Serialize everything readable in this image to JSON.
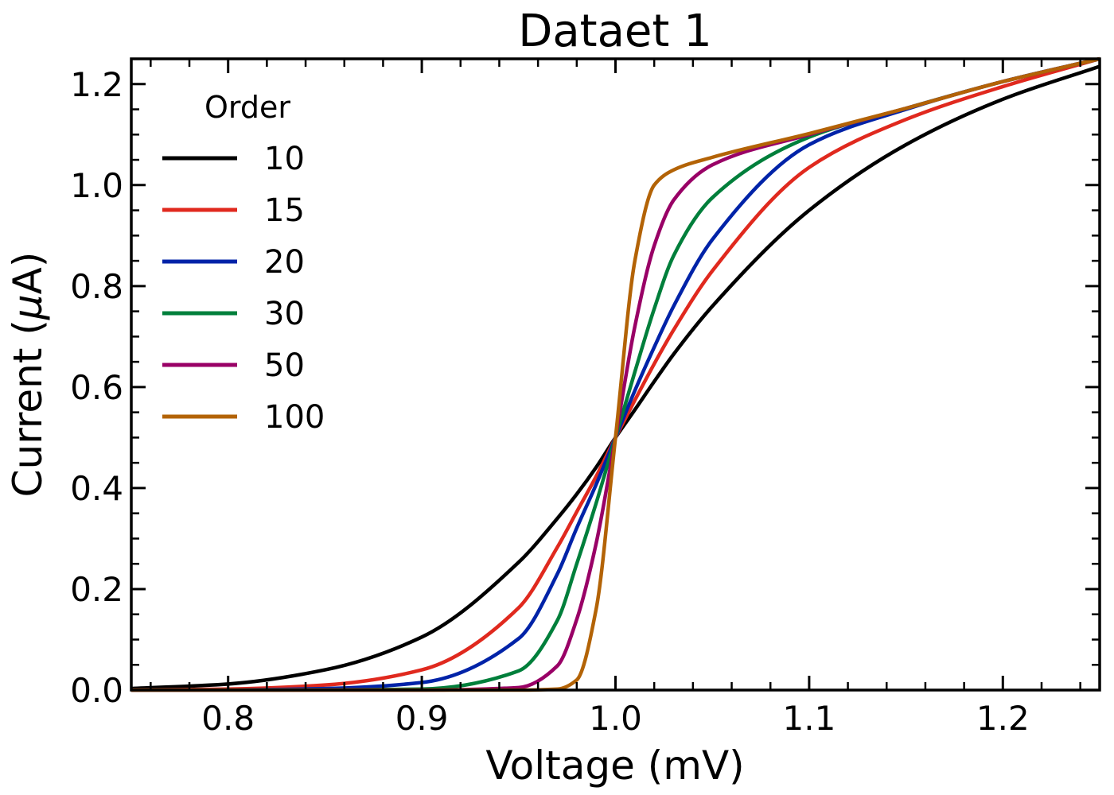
{
  "chart_data": {
    "type": "line",
    "title": "Dataet 1",
    "xlabel": "Voltage (mV)",
    "ylabel_prefix": "Current (",
    "ylabel_symbol": "μ",
    "ylabel_suffix": "A)",
    "xlim": [
      0.75,
      1.25
    ],
    "ylim": [
      0.0,
      1.25
    ],
    "x_ticks": [
      0.8,
      0.9,
      1.0,
      1.1,
      1.2
    ],
    "x_tick_labels": [
      "0.8",
      "0.9",
      "1.0",
      "1.1",
      "1.2"
    ],
    "y_ticks": [
      0.0,
      0.2,
      0.4,
      0.6,
      0.8,
      1.0,
      1.2
    ],
    "y_tick_labels": [
      "0.0",
      "0.2",
      "0.4",
      "0.6",
      "0.8",
      "1.0",
      "1.2"
    ],
    "grid": false,
    "legend": {
      "title": "Order",
      "placement": "upper-left"
    },
    "x": [
      0.75,
      0.8,
      0.85,
      0.9,
      0.95,
      0.97,
      0.98,
      0.99,
      1.0,
      1.01,
      1.02,
      1.03,
      1.05,
      1.1,
      1.15,
      1.2,
      1.25
    ],
    "series": [
      {
        "name": "10",
        "color": "#000000",
        "values": [
          0.003,
          0.012,
          0.04,
          0.105,
          0.253,
          0.34,
          0.388,
          0.441,
          0.5,
          0.555,
          0.611,
          0.665,
          0.76,
          0.95,
          1.08,
          1.17,
          1.235
        ]
      },
      {
        "name": "15",
        "color": "#e0291e",
        "values": [
          0.0001,
          0.002,
          0.01,
          0.04,
          0.163,
          0.283,
          0.353,
          0.423,
          0.5,
          0.574,
          0.646,
          0.713,
          0.83,
          1.035,
          1.13,
          1.195,
          1.25
        ]
      },
      {
        "name": "20",
        "color": "#0023a8",
        "values": [
          0.0,
          0.0003,
          0.003,
          0.015,
          0.102,
          0.23,
          0.321,
          0.407,
          0.5,
          0.593,
          0.679,
          0.76,
          0.892,
          1.08,
          1.15,
          1.205,
          1.25
        ]
      },
      {
        "name": "30",
        "color": "#007f3b",
        "values": [
          0.0,
          0.0,
          0.0003,
          0.002,
          0.038,
          0.138,
          0.25,
          0.37,
          0.5,
          0.63,
          0.755,
          0.86,
          0.975,
          1.095,
          1.152,
          1.205,
          1.25
        ]
      },
      {
        "name": "50",
        "color": "#990066",
        "values": [
          0.0,
          0.0,
          0.0,
          0.0,
          0.005,
          0.048,
          0.14,
          0.29,
          0.5,
          0.72,
          0.88,
          0.97,
          1.04,
          1.1,
          1.152,
          1.205,
          1.25
        ]
      },
      {
        "name": "100",
        "color": "#b36306",
        "values": [
          0.0,
          0.0,
          0.0,
          0.0,
          0.0,
          0.002,
          0.02,
          0.16,
          0.5,
          0.85,
          1.0,
          1.03,
          1.055,
          1.102,
          1.152,
          1.205,
          1.25
        ]
      }
    ]
  }
}
